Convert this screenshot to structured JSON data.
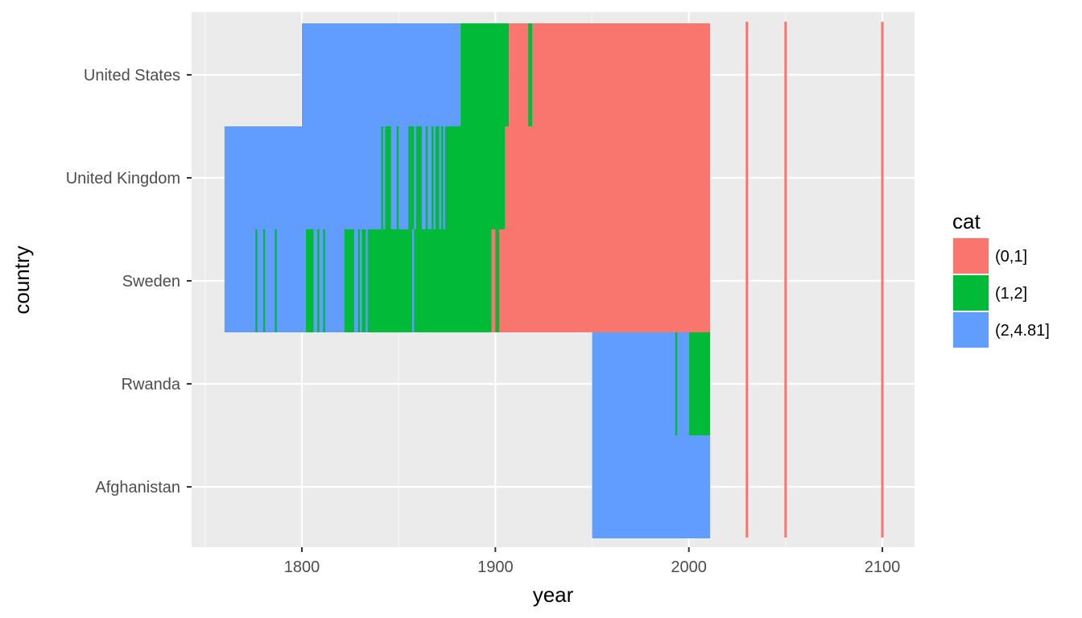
{
  "chart_data": {
    "type": "heatmap",
    "xlabel": "year",
    "ylabel": "country",
    "xlim": [
      1750,
      2115
    ],
    "x_ticks": [
      1800,
      1900,
      2000,
      2100
    ],
    "x_tick_labels": [
      "1800",
      "1900",
      "2000",
      "2100"
    ],
    "categories": [
      "Afghanistan",
      "Rwanda",
      "Sweden",
      "United Kingdom",
      "United States"
    ],
    "grid": true,
    "legend": {
      "title": "cat",
      "placement": "right",
      "items": [
        {
          "label": "(0,1]",
          "color": "#F8766D"
        },
        {
          "label": "(1,2]",
          "color": "#00BA38"
        },
        {
          "label": "(2,4.81]",
          "color": "#619CFF"
        }
      ]
    },
    "series": [
      {
        "country": "United States",
        "segments": [
          {
            "from": 1800,
            "to": 1882,
            "cat": "(2,4.81]"
          },
          {
            "from": 1882,
            "to": 1907,
            "cat": "(1,2]"
          },
          {
            "from": 1907,
            "to": 2011,
            "cat": "(0,1]"
          },
          {
            "from": 1917,
            "to": 1918,
            "cat": "(1,2]"
          },
          {
            "from": 1918,
            "to": 1919,
            "cat": "(1,2]"
          }
        ]
      },
      {
        "country": "United Kingdom",
        "segments": [
          {
            "from": 1760,
            "to": 1905,
            "cat": "(2,4.81]"
          },
          {
            "from": 1874,
            "to": 1905,
            "cat": "(1,2]"
          },
          {
            "from": 1905,
            "to": 2011,
            "cat": "(0,1]"
          },
          {
            "from": 1841,
            "to": 1842,
            "cat": "(1,2]"
          },
          {
            "from": 1843,
            "to": 1846,
            "cat": "(1,2]"
          },
          {
            "from": 1849,
            "to": 1850,
            "cat": "(1,2]"
          },
          {
            "from": 1855,
            "to": 1858,
            "cat": "(1,2]"
          },
          {
            "from": 1859,
            "to": 1862,
            "cat": "(1,2]"
          },
          {
            "from": 1864,
            "to": 1865,
            "cat": "(1,2]"
          },
          {
            "from": 1867,
            "to": 1868,
            "cat": "(1,2]"
          },
          {
            "from": 1869,
            "to": 1871,
            "cat": "(1,2]"
          },
          {
            "from": 1872,
            "to": 1873,
            "cat": "(1,2]"
          }
        ]
      },
      {
        "country": "Sweden",
        "segments": [
          {
            "from": 1760,
            "to": 1802,
            "cat": "(2,4.81]"
          },
          {
            "from": 1802,
            "to": 1898,
            "cat": "(1,2]"
          },
          {
            "from": 1898,
            "to": 2011,
            "cat": "(0,1]"
          },
          {
            "from": 1776,
            "to": 1777,
            "cat": "(1,2]"
          },
          {
            "from": 1780,
            "to": 1781,
            "cat": "(1,2]"
          },
          {
            "from": 1786,
            "to": 1787,
            "cat": "(1,2]"
          },
          {
            "from": 1806,
            "to": 1808,
            "cat": "(2,4.81]"
          },
          {
            "from": 1809,
            "to": 1811,
            "cat": "(2,4.81]"
          },
          {
            "from": 1812,
            "to": 1822,
            "cat": "(2,4.81]"
          },
          {
            "from": 1827,
            "to": 1829,
            "cat": "(2,4.81]"
          },
          {
            "from": 1830,
            "to": 1831,
            "cat": "(2,4.81]"
          },
          {
            "from": 1833,
            "to": 1834,
            "cat": "(2,4.81]"
          },
          {
            "from": 1857,
            "to": 1858,
            "cat": "(2,4.81]"
          },
          {
            "from": 1900,
            "to": 1902,
            "cat": "(1,2]"
          }
        ]
      },
      {
        "country": "Rwanda",
        "segments": [
          {
            "from": 1950,
            "to": 2000,
            "cat": "(2,4.81]"
          },
          {
            "from": 2000,
            "to": 2011,
            "cat": "(1,2]"
          },
          {
            "from": 1993,
            "to": 1994,
            "cat": "(1,2]"
          }
        ]
      },
      {
        "country": "Afghanistan",
        "segments": [
          {
            "from": 1950,
            "to": 2011,
            "cat": "(2,4.81]"
          }
        ]
      }
    ],
    "reference_lines": [
      {
        "x": 2030,
        "cat": "(0,1]"
      },
      {
        "x": 2050,
        "cat": "(0,1]"
      },
      {
        "x": 2100,
        "cat": "(0,1]"
      }
    ]
  }
}
